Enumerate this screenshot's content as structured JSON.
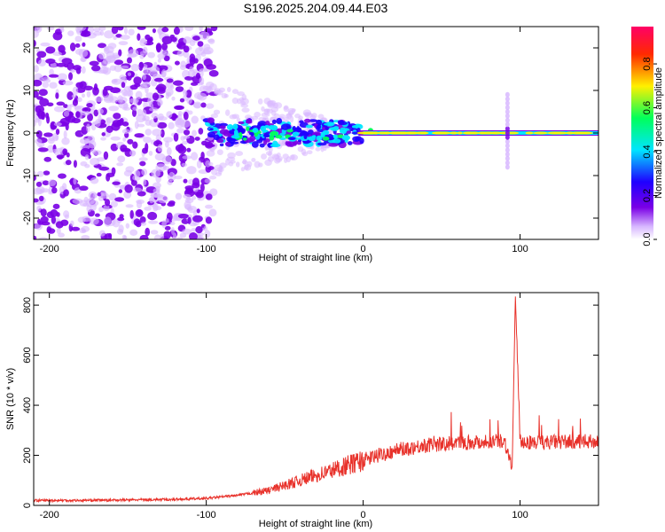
{
  "title": "S196.2025.204.09.44.E03",
  "colors": {
    "line": "#e8312a",
    "frame": "#000000"
  },
  "chart_data": [
    {
      "type": "heatmap",
      "xlabel": "Height of straight line (km)",
      "ylabel": "Frequency (Hz)",
      "xlim": [
        -210,
        150
      ],
      "ylim": [
        -25,
        25
      ],
      "x_ticks": [
        -200,
        -100,
        0,
        100
      ],
      "x_tick_labels": [
        "-200",
        "-100",
        "0",
        "100"
      ],
      "y_ticks": [
        -20,
        -10,
        0,
        10,
        20
      ],
      "y_tick_labels": [
        "-20",
        "-10",
        "0",
        "10",
        "20"
      ],
      "colorbar": {
        "label": "Normalized spectral amplitude",
        "range": [
          0.0,
          0.97
        ],
        "ticks": [
          0.0,
          0.2,
          0.4,
          0.6,
          0.8
        ],
        "tick_labels": [
          "0.0",
          "0.2",
          "0.4",
          "0.6",
          "0.8"
        ],
        "colormap": [
          "#ffffff",
          "#d8b8ff",
          "#7a00e6",
          "#1f00ff",
          "#00e5ff",
          "#00ff5a",
          "#fff000",
          "#ff2a00",
          "#ff0066"
        ]
      },
      "features": {
        "noise_region": {
          "x_range": [
            -210,
            -95
          ],
          "freq_range": [
            -25,
            25
          ]
        },
        "line_center_hz": 0,
        "tone_line_start_x": 0,
        "vertical_burst_x": 92,
        "vertical_burst_freq_range": [
          -8,
          9
        ]
      }
    },
    {
      "type": "line",
      "xlabel": "Height of straight line (km)",
      "ylabel": "SNR (10 * v/v)",
      "xlim": [
        -210,
        150
      ],
      "ylim": [
        0,
        850
      ],
      "x_ticks": [
        -200,
        -100,
        0,
        100
      ],
      "x_tick_labels": [
        "-200",
        "-100",
        "0",
        "100"
      ],
      "y_ticks": [
        0,
        200,
        400,
        600,
        800
      ],
      "y_tick_labels": [
        "0",
        "200",
        "400",
        "600",
        "800"
      ],
      "series": [
        {
          "x": [
            -210,
            -180,
            -150,
            -120,
            -100,
            -80,
            -60,
            -40,
            -20,
            0,
            20,
            40,
            60,
            80,
            90,
            95,
            97,
            100,
            110,
            130,
            150
          ],
          "y": [
            20,
            20,
            22,
            24,
            28,
            40,
            60,
            100,
            140,
            180,
            220,
            240,
            250,
            255,
            260,
            150,
            840,
            255,
            250,
            255,
            255
          ]
        }
      ]
    }
  ]
}
